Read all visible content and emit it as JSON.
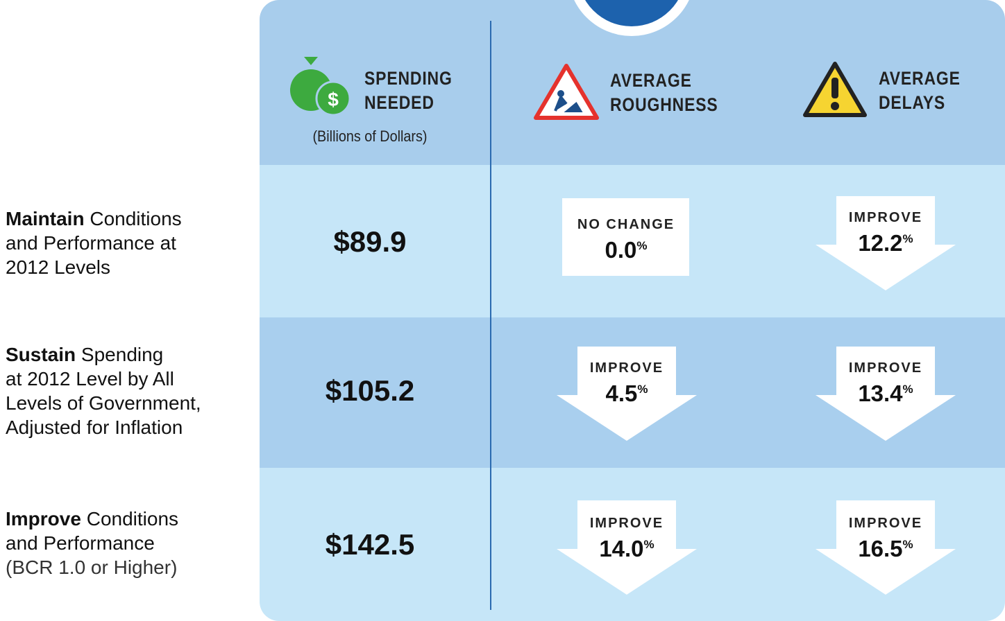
{
  "header": {
    "columns": [
      {
        "title_lines": [
          "SPENDING",
          "NEEDED"
        ],
        "subtitle": "(Billions of Dollars)"
      },
      {
        "title_lines": [
          "AVERAGE",
          "ROUGHNESS"
        ]
      },
      {
        "title_lines": [
          "AVERAGE",
          "DELAYS"
        ]
      }
    ]
  },
  "rows": [
    {
      "label": {
        "bold": "Maintain",
        "lines": [
          "Conditions",
          "and Performance at",
          "2012 Levels"
        ]
      },
      "spending": "$89.9",
      "roughness": {
        "status": "NO CHANGE",
        "value": "0.0",
        "unit": "%"
      },
      "delays": {
        "status": "IMPROVE",
        "value": "12.2",
        "unit": "%"
      }
    },
    {
      "label": {
        "bold": "Sustain",
        "lines": [
          "Spending",
          "at 2012 Level by All",
          "Levels of Government,",
          "Adjusted for Inflation"
        ]
      },
      "spending": "$105.2",
      "roughness": {
        "status": "IMPROVE",
        "value": "4.5",
        "unit": "%"
      },
      "delays": {
        "status": "IMPROVE",
        "value": "13.4",
        "unit": "%"
      }
    },
    {
      "label": {
        "bold": "Improve",
        "lines": [
          "Conditions",
          "and Performance"
        ],
        "note": "(BCR 1.0 or Higher)"
      },
      "spending": "$142.5",
      "roughness": {
        "status": "IMPROVE",
        "value": "14.0",
        "unit": "%"
      },
      "delays": {
        "status": "IMPROVE",
        "value": "16.5",
        "unit": "%"
      }
    }
  ]
}
